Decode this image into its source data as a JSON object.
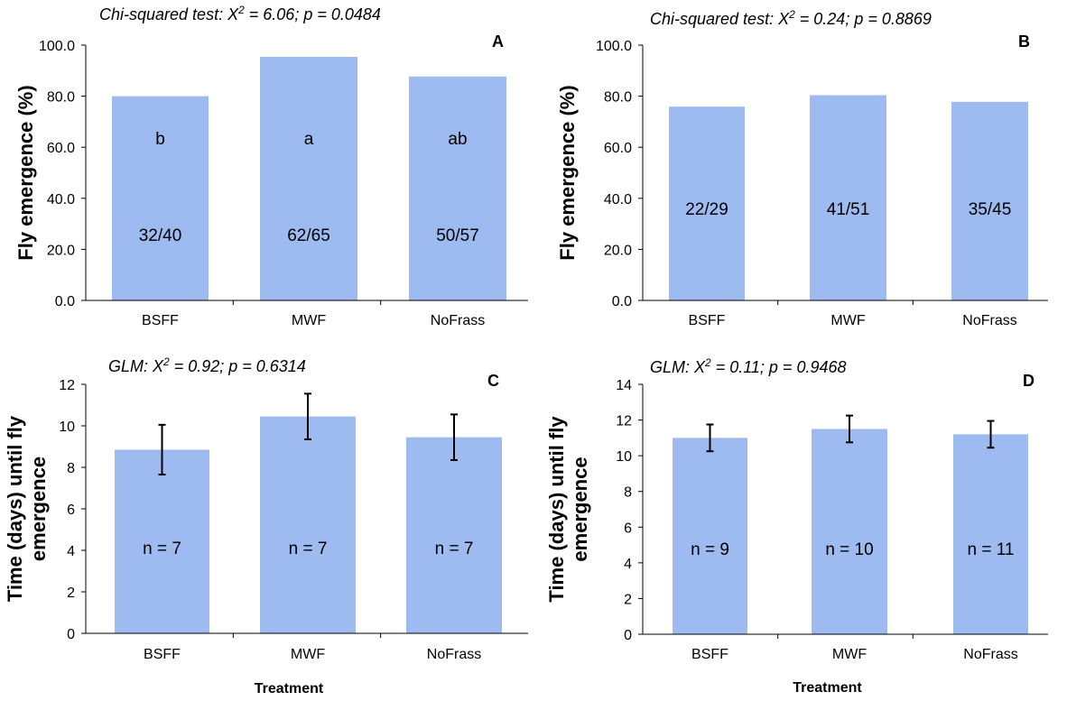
{
  "chart_data": [
    {
      "id": "A",
      "type": "bar",
      "panel_letter": "A",
      "stat_label": "Chi-squared test: X² = 6.06; p = 0.0484",
      "ylabel": "Fly emergence (%)",
      "xlabel": "",
      "ylim": [
        0,
        100
      ],
      "yticks": [
        "0.0",
        "20.0",
        "40.0",
        "60.0",
        "80.0",
        "100.0"
      ],
      "categories": [
        "BSFF",
        "MWF",
        "NoFrass"
      ],
      "values": [
        80.0,
        95.4,
        87.7
      ],
      "letters": [
        "b",
        "a",
        "ab"
      ],
      "counts": [
        "32/40",
        "62/65",
        "50/57"
      ],
      "color": "#9dbbf1"
    },
    {
      "id": "B",
      "type": "bar",
      "panel_letter": "B",
      "stat_label": "Chi-squared test: X² = 0.24; p = 0.8869",
      "ylabel": "Fly emergence (%)",
      "xlabel": "",
      "ylim": [
        0,
        100
      ],
      "yticks": [
        "0.0",
        "20.0",
        "40.0",
        "60.0",
        "80.0",
        "100.0"
      ],
      "categories": [
        "BSFF",
        "MWF",
        "NoFrass"
      ],
      "values": [
        75.9,
        80.4,
        77.8
      ],
      "counts": [
        "22/29",
        "41/51",
        "35/45"
      ],
      "color": "#9dbbf1"
    },
    {
      "id": "C",
      "type": "bar",
      "panel_letter": "C",
      "stat_label": "GLM: X² = 0.92; p = 0.6314",
      "ylabel": "Time (days) until fly emergence",
      "xlabel": "Treatment",
      "ylim": [
        0,
        12
      ],
      "yticks": [
        "0",
        "2",
        "4",
        "6",
        "8",
        "10",
        "12"
      ],
      "categories": [
        "BSFF",
        "MWF",
        "NoFrass"
      ],
      "values": [
        8.85,
        10.45,
        9.45
      ],
      "errors": [
        1.2,
        1.1,
        1.1
      ],
      "counts": [
        "n = 7",
        "n = 7",
        "n = 7"
      ],
      "color": "#9dbbf1"
    },
    {
      "id": "D",
      "type": "bar",
      "panel_letter": "D",
      "stat_label": "GLM: X² = 0.11; p = 0.9468",
      "ylabel": "Time (days) until fly emergence",
      "xlabel": "Treatment",
      "ylim": [
        0,
        14
      ],
      "yticks": [
        "0",
        "2",
        "4",
        "6",
        "8",
        "10",
        "12",
        "14"
      ],
      "categories": [
        "BSFF",
        "MWF",
        "NoFrass"
      ],
      "values": [
        11.0,
        11.5,
        11.2
      ],
      "errors": [
        0.75,
        0.75,
        0.75
      ],
      "counts": [
        "n = 9",
        "n = 10",
        "n = 11"
      ],
      "color": "#9dbbf1"
    }
  ]
}
